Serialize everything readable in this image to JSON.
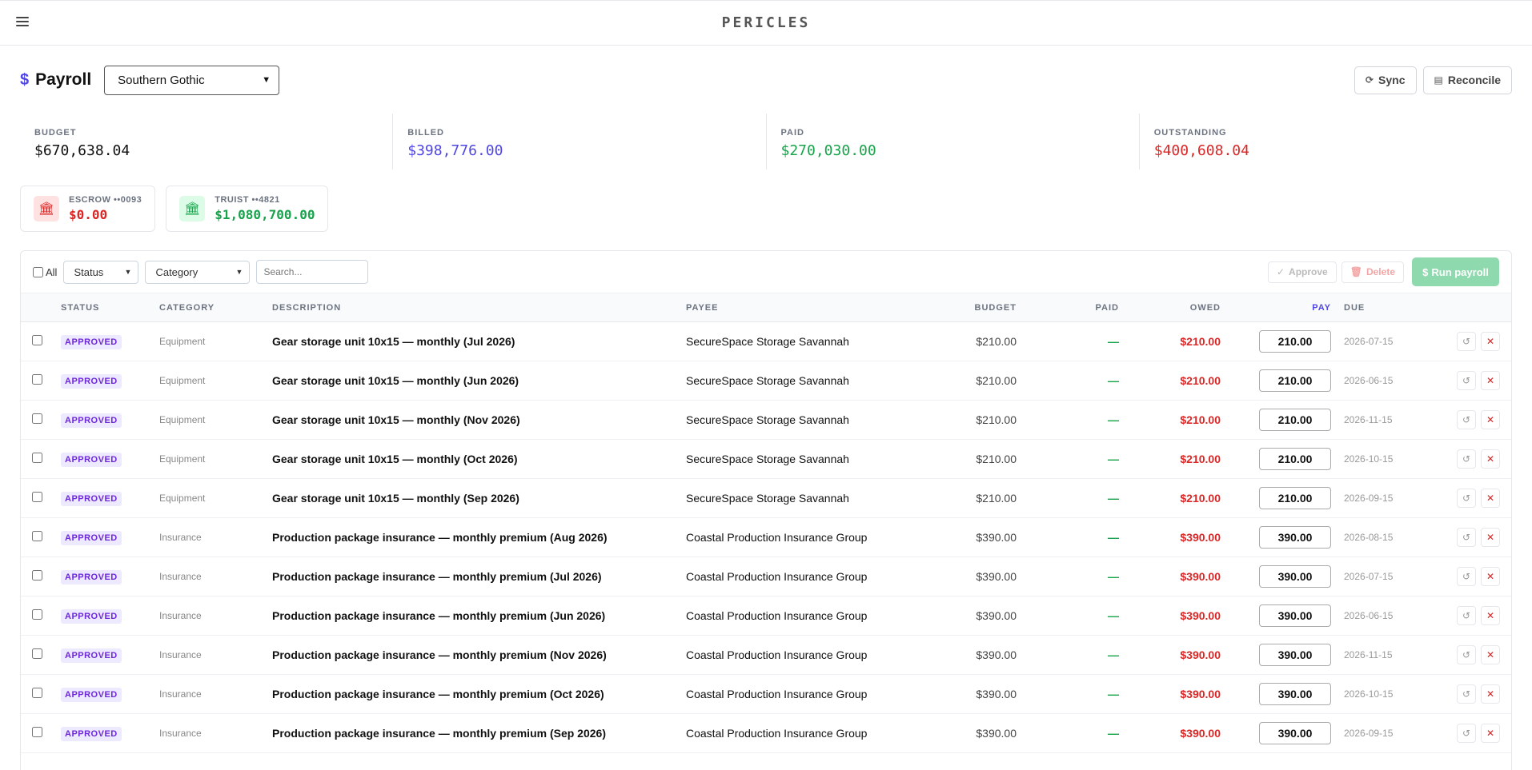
{
  "app": {
    "brand": "PERICLES"
  },
  "header": {
    "title": "Payroll",
    "project": "Southern Gothic",
    "sync_label": "Sync",
    "reconcile_label": "Reconcile"
  },
  "stats": [
    {
      "label": "BUDGET",
      "value": "$670,638.04",
      "color": "#111111"
    },
    {
      "label": "BILLED",
      "value": "$398,776.00",
      "color": "#4f46e5"
    },
    {
      "label": "PAID",
      "value": "$270,030.00",
      "color": "#16a34a"
    },
    {
      "label": "OUTSTANDING",
      "value": "$400,608.04",
      "color": "#dc2626"
    }
  ],
  "accounts": [
    {
      "name": "ESCROW ••0093",
      "amount": "$0.00",
      "color": "#dc2626",
      "icon": "bank-icon"
    },
    {
      "name": "TRUIST ••4821",
      "amount": "$1,080,700.00",
      "color": "#16a34a",
      "icon": "bank-icon"
    }
  ],
  "toolbar": {
    "all_label": "All",
    "status_filter": "Status",
    "category_filter": "Category",
    "search_placeholder": "Search...",
    "approve_label": "Approve",
    "delete_label": "Delete",
    "run_label": "Run payroll"
  },
  "table": {
    "columns": [
      "STATUS",
      "CATEGORY",
      "DESCRIPTION",
      "PAYEE",
      "BUDGET",
      "PAID",
      "OWED",
      "PAY",
      "DUE"
    ],
    "rows": [
      {
        "status": "APPROVED",
        "category": "Equipment",
        "description": "Gear storage unit 10x15 — monthly (Jul 2026)",
        "payee": "SecureSpace Storage Savannah",
        "budget": "$210.00",
        "paid": "—",
        "owed": "$210.00",
        "pay": "210.00",
        "due": "2026-07-15"
      },
      {
        "status": "APPROVED",
        "category": "Equipment",
        "description": "Gear storage unit 10x15 — monthly (Jun 2026)",
        "payee": "SecureSpace Storage Savannah",
        "budget": "$210.00",
        "paid": "—",
        "owed": "$210.00",
        "pay": "210.00",
        "due": "2026-06-15"
      },
      {
        "status": "APPROVED",
        "category": "Equipment",
        "description": "Gear storage unit 10x15 — monthly (Nov 2026)",
        "payee": "SecureSpace Storage Savannah",
        "budget": "$210.00",
        "paid": "—",
        "owed": "$210.00",
        "pay": "210.00",
        "due": "2026-11-15"
      },
      {
        "status": "APPROVED",
        "category": "Equipment",
        "description": "Gear storage unit 10x15 — monthly (Oct 2026)",
        "payee": "SecureSpace Storage Savannah",
        "budget": "$210.00",
        "paid": "—",
        "owed": "$210.00",
        "pay": "210.00",
        "due": "2026-10-15"
      },
      {
        "status": "APPROVED",
        "category": "Equipment",
        "description": "Gear storage unit 10x15 — monthly (Sep 2026)",
        "payee": "SecureSpace Storage Savannah",
        "budget": "$210.00",
        "paid": "—",
        "owed": "$210.00",
        "pay": "210.00",
        "due": "2026-09-15"
      },
      {
        "status": "APPROVED",
        "category": "Insurance",
        "description": "Production package insurance — monthly premium (Aug 2026)",
        "payee": "Coastal Production Insurance Group",
        "budget": "$390.00",
        "paid": "—",
        "owed": "$390.00",
        "pay": "390.00",
        "due": "2026-08-15"
      },
      {
        "status": "APPROVED",
        "category": "Insurance",
        "description": "Production package insurance — monthly premium (Jul 2026)",
        "payee": "Coastal Production Insurance Group",
        "budget": "$390.00",
        "paid": "—",
        "owed": "$390.00",
        "pay": "390.00",
        "due": "2026-07-15"
      },
      {
        "status": "APPROVED",
        "category": "Insurance",
        "description": "Production package insurance — monthly premium (Jun 2026)",
        "payee": "Coastal Production Insurance Group",
        "budget": "$390.00",
        "paid": "—",
        "owed": "$390.00",
        "pay": "390.00",
        "due": "2026-06-15"
      },
      {
        "status": "APPROVED",
        "category": "Insurance",
        "description": "Production package insurance — monthly premium (Nov 2026)",
        "payee": "Coastal Production Insurance Group",
        "budget": "$390.00",
        "paid": "—",
        "owed": "$390.00",
        "pay": "390.00",
        "due": "2026-11-15"
      },
      {
        "status": "APPROVED",
        "category": "Insurance",
        "description": "Production package insurance — monthly premium (Oct 2026)",
        "payee": "Coastal Production Insurance Group",
        "budget": "$390.00",
        "paid": "—",
        "owed": "$390.00",
        "pay": "390.00",
        "due": "2026-10-15"
      },
      {
        "status": "APPROVED",
        "category": "Insurance",
        "description": "Production package insurance — monthly premium (Sep 2026)",
        "payee": "Coastal Production Insurance Group",
        "budget": "$390.00",
        "paid": "—",
        "owed": "$390.00",
        "pay": "390.00",
        "due": "2026-09-15"
      }
    ]
  }
}
